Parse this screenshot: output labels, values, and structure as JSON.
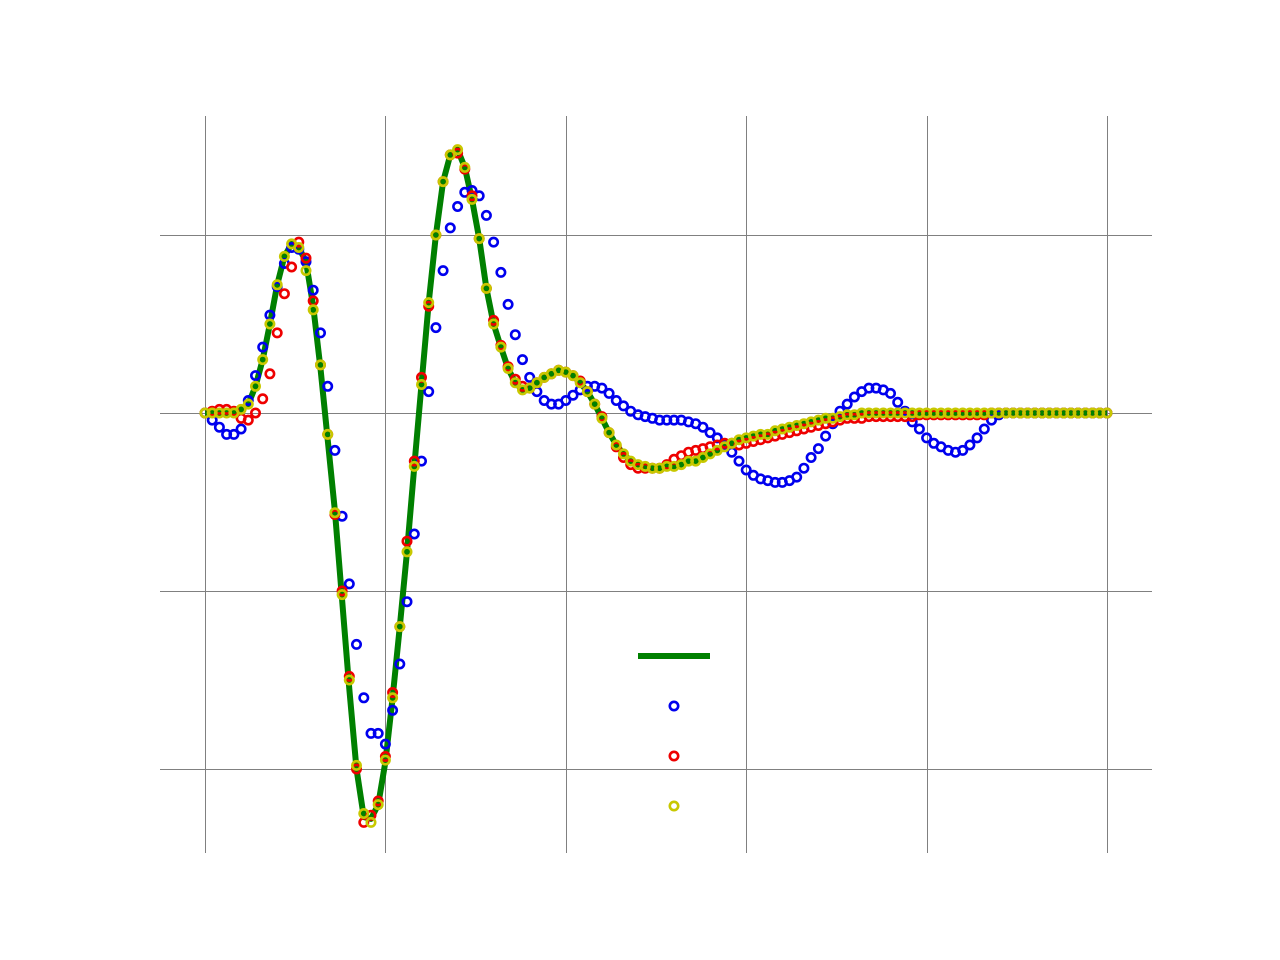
{
  "chart_data": {
    "type": "line",
    "title": "",
    "xlabel": "",
    "ylabel": "",
    "xlim": [
      0,
      5
    ],
    "ylim": [
      -2.47,
      1.67
    ],
    "x_grid": [
      0,
      1,
      2,
      3,
      4,
      5
    ],
    "y_grid": [
      -2,
      -1,
      0,
      1
    ],
    "grid": true,
    "legend": "lower-right",
    "x": [
      0,
      0.04,
      0.08,
      0.12,
      0.16,
      0.2,
      0.24,
      0.28,
      0.32,
      0.36,
      0.4,
      0.44,
      0.48,
      0.52,
      0.56,
      0.6,
      0.64,
      0.68,
      0.72,
      0.76,
      0.8,
      0.84,
      0.88,
      0.92,
      0.96,
      1,
      1.04,
      1.08,
      1.12,
      1.16,
      1.2,
      1.24,
      1.28,
      1.32,
      1.36,
      1.4,
      1.44,
      1.48,
      1.52,
      1.56,
      1.6,
      1.64,
      1.68,
      1.72,
      1.76,
      1.8,
      1.84,
      1.88,
      1.92,
      1.96,
      2,
      2.04,
      2.08,
      2.12,
      2.16,
      2.2,
      2.24,
      2.28,
      2.32,
      2.36,
      2.4,
      2.44,
      2.48,
      2.52,
      2.56,
      2.6,
      2.64,
      2.68,
      2.72,
      2.76,
      2.8,
      2.84,
      2.88,
      2.92,
      2.96,
      3,
      3.04,
      3.08,
      3.12,
      3.16,
      3.2,
      3.24,
      3.28,
      3.32,
      3.36,
      3.4,
      3.44,
      3.48,
      3.52,
      3.56,
      3.6,
      3.64,
      3.68,
      3.72,
      3.76,
      3.8,
      3.84,
      3.88,
      3.92,
      3.96,
      4,
      4.04,
      4.08,
      4.12,
      4.16,
      4.2,
      4.24,
      4.28,
      4.32,
      4.36,
      4.4,
      4.44,
      4.48,
      4.52,
      4.56,
      4.6,
      4.64,
      4.68,
      4.72,
      4.76,
      4.8,
      4.84,
      4.88,
      4.92,
      4.96,
      5
    ],
    "series": [
      {
        "style": "line",
        "color": "#008000",
        "values": [
          0,
          0,
          0,
          0,
          0,
          0.02,
          0.05,
          0.15,
          0.3,
          0.5,
          0.72,
          0.88,
          0.95,
          0.93,
          0.85,
          0.6,
          0.25,
          -0.15,
          -0.55,
          -1.05,
          -1.55,
          -2.0,
          -2.27,
          -2.28,
          -2.2,
          -1.96,
          -1.6,
          -1.2,
          -0.78,
          -0.3,
          0.16,
          0.62,
          1.0,
          1.3,
          1.45,
          1.48,
          1.38,
          1.2,
          0.98,
          0.7,
          0.5,
          0.37,
          0.25,
          0.17,
          0.13,
          0.14,
          0.17,
          0.2,
          0.22,
          0.24,
          0.23,
          0.21,
          0.17,
          0.12,
          0.05,
          -0.03,
          -0.11,
          -0.18,
          -0.23,
          -0.27,
          -0.29,
          -0.3,
          -0.31,
          -0.31,
          -0.3,
          -0.3,
          -0.29,
          -0.27,
          -0.27,
          -0.25,
          -0.23,
          -0.21,
          -0.19,
          -0.17,
          -0.15,
          -0.14,
          -0.13,
          -0.12,
          -0.12,
          -0.1,
          -0.09,
          -0.08,
          -0.07,
          -0.06,
          -0.05,
          -0.04,
          -0.03,
          -0.03,
          -0.02,
          -0.01,
          -0.01,
          0,
          0,
          0,
          0,
          0,
          0,
          0,
          0,
          0,
          0,
          0,
          0,
          0,
          0,
          0,
          0,
          0,
          0,
          0,
          0,
          0,
          0,
          0,
          0,
          0,
          0,
          0,
          0,
          0,
          0,
          0,
          0,
          0,
          0,
          0
        ]
      },
      {
        "style": "markers",
        "color": "#0000ee",
        "values": [
          0,
          -0.04,
          -0.08,
          -0.12,
          -0.12,
          -0.09,
          0.07,
          0.21,
          0.37,
          0.55,
          0.71,
          0.84,
          0.93,
          0.92,
          0.85,
          0.69,
          0.45,
          0.15,
          -0.21,
          -0.58,
          -0.96,
          -1.3,
          -1.6,
          -1.8,
          -1.8,
          -1.86,
          -1.67,
          -1.41,
          -1.06,
          -0.68,
          -0.27,
          0.12,
          0.48,
          0.8,
          1.04,
          1.16,
          1.24,
          1.25,
          1.22,
          1.11,
          0.96,
          0.79,
          0.61,
          0.44,
          0.3,
          0.2,
          0.12,
          0.07,
          0.05,
          0.05,
          0.07,
          0.1,
          0.13,
          0.15,
          0.15,
          0.14,
          0.11,
          0.07,
          0.04,
          0.01,
          -0.01,
          -0.02,
          -0.03,
          -0.04,
          -0.04,
          -0.04,
          -0.04,
          -0.05,
          -0.06,
          -0.08,
          -0.11,
          -0.14,
          -0.18,
          -0.22,
          -0.27,
          -0.32,
          -0.35,
          -0.37,
          -0.38,
          -0.39,
          -0.39,
          -0.38,
          -0.36,
          -0.31,
          -0.25,
          -0.2,
          -0.13,
          -0.06,
          0.01,
          0.05,
          0.09,
          0.12,
          0.14,
          0.14,
          0.13,
          0.11,
          0.06,
          0.01,
          -0.05,
          -0.09,
          -0.14,
          -0.17,
          -0.19,
          -0.21,
          -0.22,
          -0.21,
          -0.18,
          -0.14,
          -0.09,
          -0.04,
          -0.01,
          0,
          0,
          0,
          0,
          0,
          0,
          0,
          0,
          0,
          0,
          0,
          0,
          0,
          0,
          0
        ]
      },
      {
        "style": "markers",
        "color": "#ee0000",
        "values": [
          0,
          0.01,
          0.02,
          0.02,
          0.01,
          -0.03,
          -0.04,
          0.0,
          0.08,
          0.22,
          0.45,
          0.67,
          0.82,
          0.96,
          0.87,
          0.63,
          0.27,
          -0.12,
          -0.57,
          -1.0,
          -1.48,
          -2.0,
          -2.3,
          -2.26,
          -2.18,
          -1.93,
          -1.57,
          -1.2,
          -0.72,
          -0.27,
          0.2,
          0.6,
          1.0,
          1.3,
          1.45,
          1.46,
          1.37,
          1.22,
          0.98,
          0.7,
          0.52,
          0.38,
          0.26,
          0.19,
          0.15,
          0.14,
          0.17,
          0.2,
          0.22,
          0.24,
          0.23,
          0.21,
          0.18,
          0.12,
          0.05,
          -0.02,
          -0.11,
          -0.19,
          -0.25,
          -0.29,
          -0.31,
          -0.31,
          -0.31,
          -0.31,
          -0.29,
          -0.26,
          -0.24,
          -0.22,
          -0.21,
          -0.2,
          -0.19,
          -0.18,
          -0.17,
          -0.17,
          -0.18,
          -0.17,
          -0.16,
          -0.15,
          -0.14,
          -0.13,
          -0.12,
          -0.11,
          -0.1,
          -0.09,
          -0.08,
          -0.07,
          -0.06,
          -0.05,
          -0.04,
          -0.03,
          -0.03,
          -0.03,
          -0.02,
          -0.02,
          -0.02,
          -0.02,
          -0.02,
          -0.02,
          -0.02,
          -0.01,
          -0.01,
          -0.01,
          -0.01,
          -0.01,
          -0.01,
          -0.01,
          -0.01,
          -0.01,
          -0.01,
          0,
          0,
          0,
          0,
          0,
          0,
          0,
          0,
          0,
          0,
          0,
          0,
          0,
          0,
          0,
          0,
          0
        ]
      },
      {
        "style": "markers",
        "color": "#c8c800",
        "values": [
          0,
          0,
          0,
          0,
          0,
          0.02,
          0.05,
          0.15,
          0.3,
          0.5,
          0.72,
          0.88,
          0.95,
          0.93,
          0.8,
          0.58,
          0.27,
          -0.12,
          -0.56,
          -1.02,
          -1.5,
          -1.98,
          -2.25,
          -2.3,
          -2.2,
          -1.95,
          -1.6,
          -1.2,
          -0.78,
          -0.3,
          0.16,
          0.62,
          1.0,
          1.3,
          1.45,
          1.48,
          1.38,
          1.2,
          0.98,
          0.7,
          0.5,
          0.37,
          0.25,
          0.17,
          0.13,
          0.14,
          0.17,
          0.2,
          0.22,
          0.24,
          0.23,
          0.21,
          0.17,
          0.12,
          0.05,
          -0.03,
          -0.11,
          -0.18,
          -0.23,
          -0.27,
          -0.29,
          -0.3,
          -0.31,
          -0.31,
          -0.3,
          -0.3,
          -0.29,
          -0.27,
          -0.27,
          -0.25,
          -0.23,
          -0.21,
          -0.19,
          -0.17,
          -0.15,
          -0.14,
          -0.13,
          -0.12,
          -0.12,
          -0.1,
          -0.09,
          -0.08,
          -0.07,
          -0.06,
          -0.05,
          -0.04,
          -0.03,
          -0.03,
          -0.02,
          -0.01,
          -0.01,
          0,
          0,
          0,
          0,
          0,
          0,
          0,
          0,
          0,
          0,
          0,
          0,
          0,
          0,
          0,
          0,
          0,
          0,
          0,
          0,
          0,
          0,
          0,
          0,
          0,
          0,
          0,
          0,
          0,
          0,
          0,
          0,
          0,
          0,
          0
        ]
      }
    ]
  }
}
